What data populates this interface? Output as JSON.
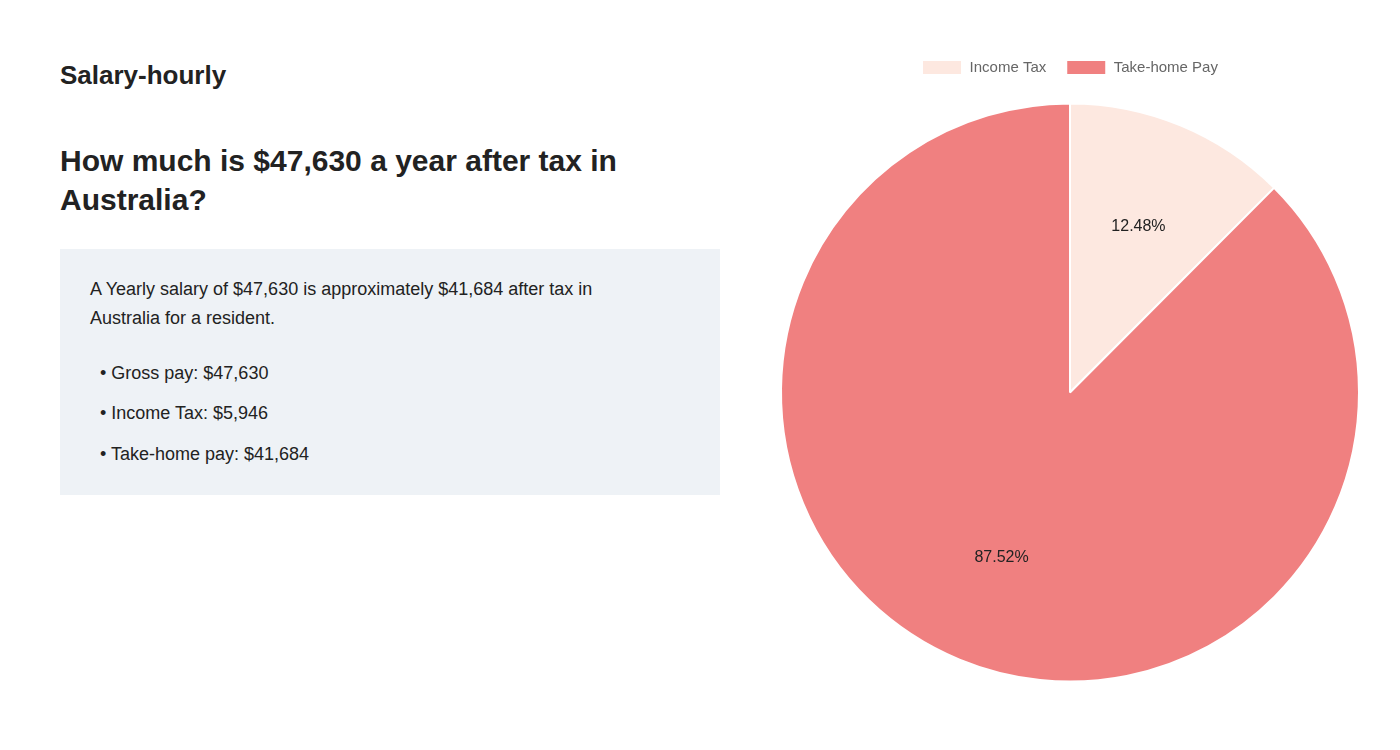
{
  "chart_data": {
    "type": "pie",
    "title": [
      "How much is $47,630 a year after tax in",
      "Australia?"
    ],
    "categories": [
      "Income Tax",
      "Take-home Pay"
    ],
    "values": [
      12.48,
      87.52
    ],
    "value_labels": [
      "12.48%",
      "87.52%"
    ],
    "colors": [
      "#fde8e0",
      "#f08080"
    ],
    "data_labels": true,
    "legend": "top",
    "annotations": [
      "Salary-hourly",
      "A Yearly salary of $47,630 is approximately $41,684 after tax in",
      "Australia for a resident.",
      "•  Gross pay: $47,630",
      "•  Income Tax: $5,946",
      "•  Take-home pay: $41,684"
    ]
  }
}
